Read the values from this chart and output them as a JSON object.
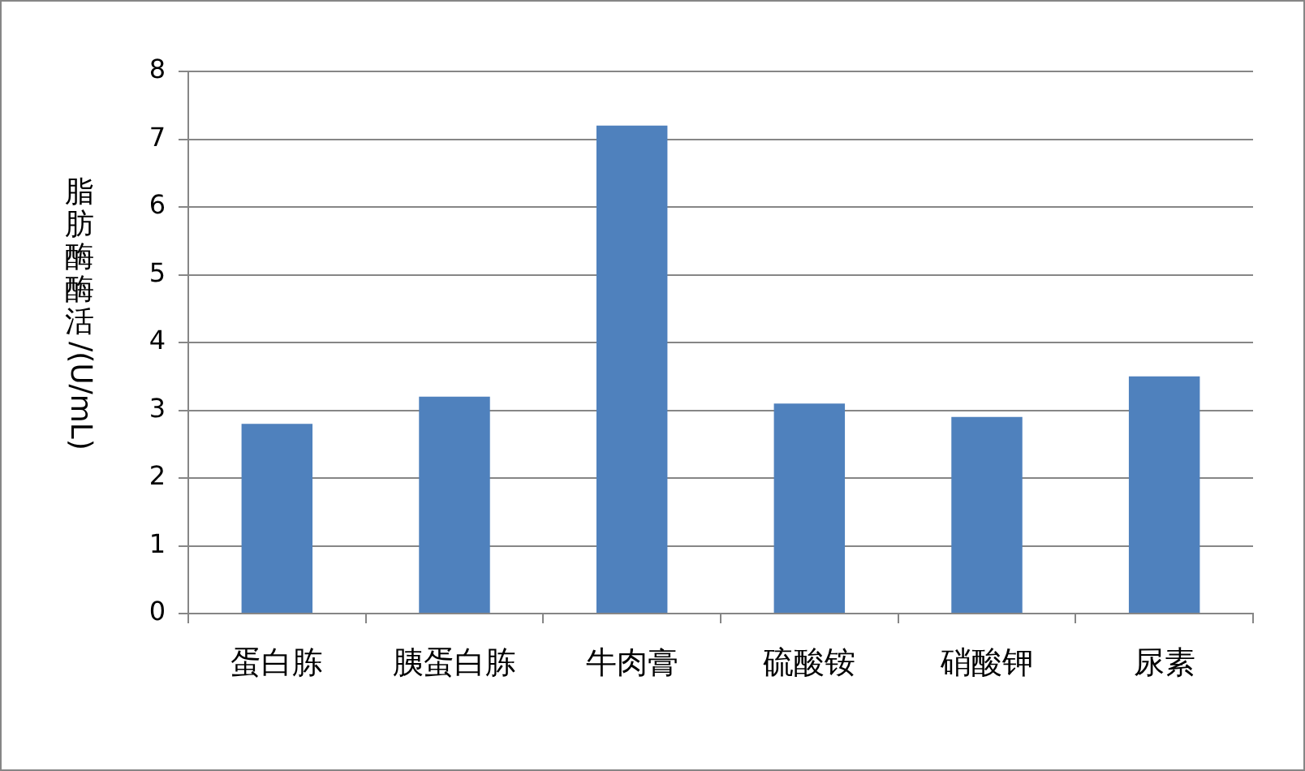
{
  "chart_data": {
    "type": "bar",
    "ylabel": "脂肪酶酶活/(U/mL)",
    "categories": [
      "蛋白胨",
      "胰蛋白胨",
      "牛肉膏",
      "硫酸铵",
      "硝酸钾",
      "尿素"
    ],
    "values": [
      2.8,
      3.2,
      7.2,
      3.1,
      2.9,
      3.5
    ],
    "color": "#4f81bd",
    "ylim": [
      0,
      8
    ],
    "yticks": [
      0,
      1,
      2,
      3,
      4,
      5,
      6,
      7,
      8
    ],
    "grid": "y"
  }
}
